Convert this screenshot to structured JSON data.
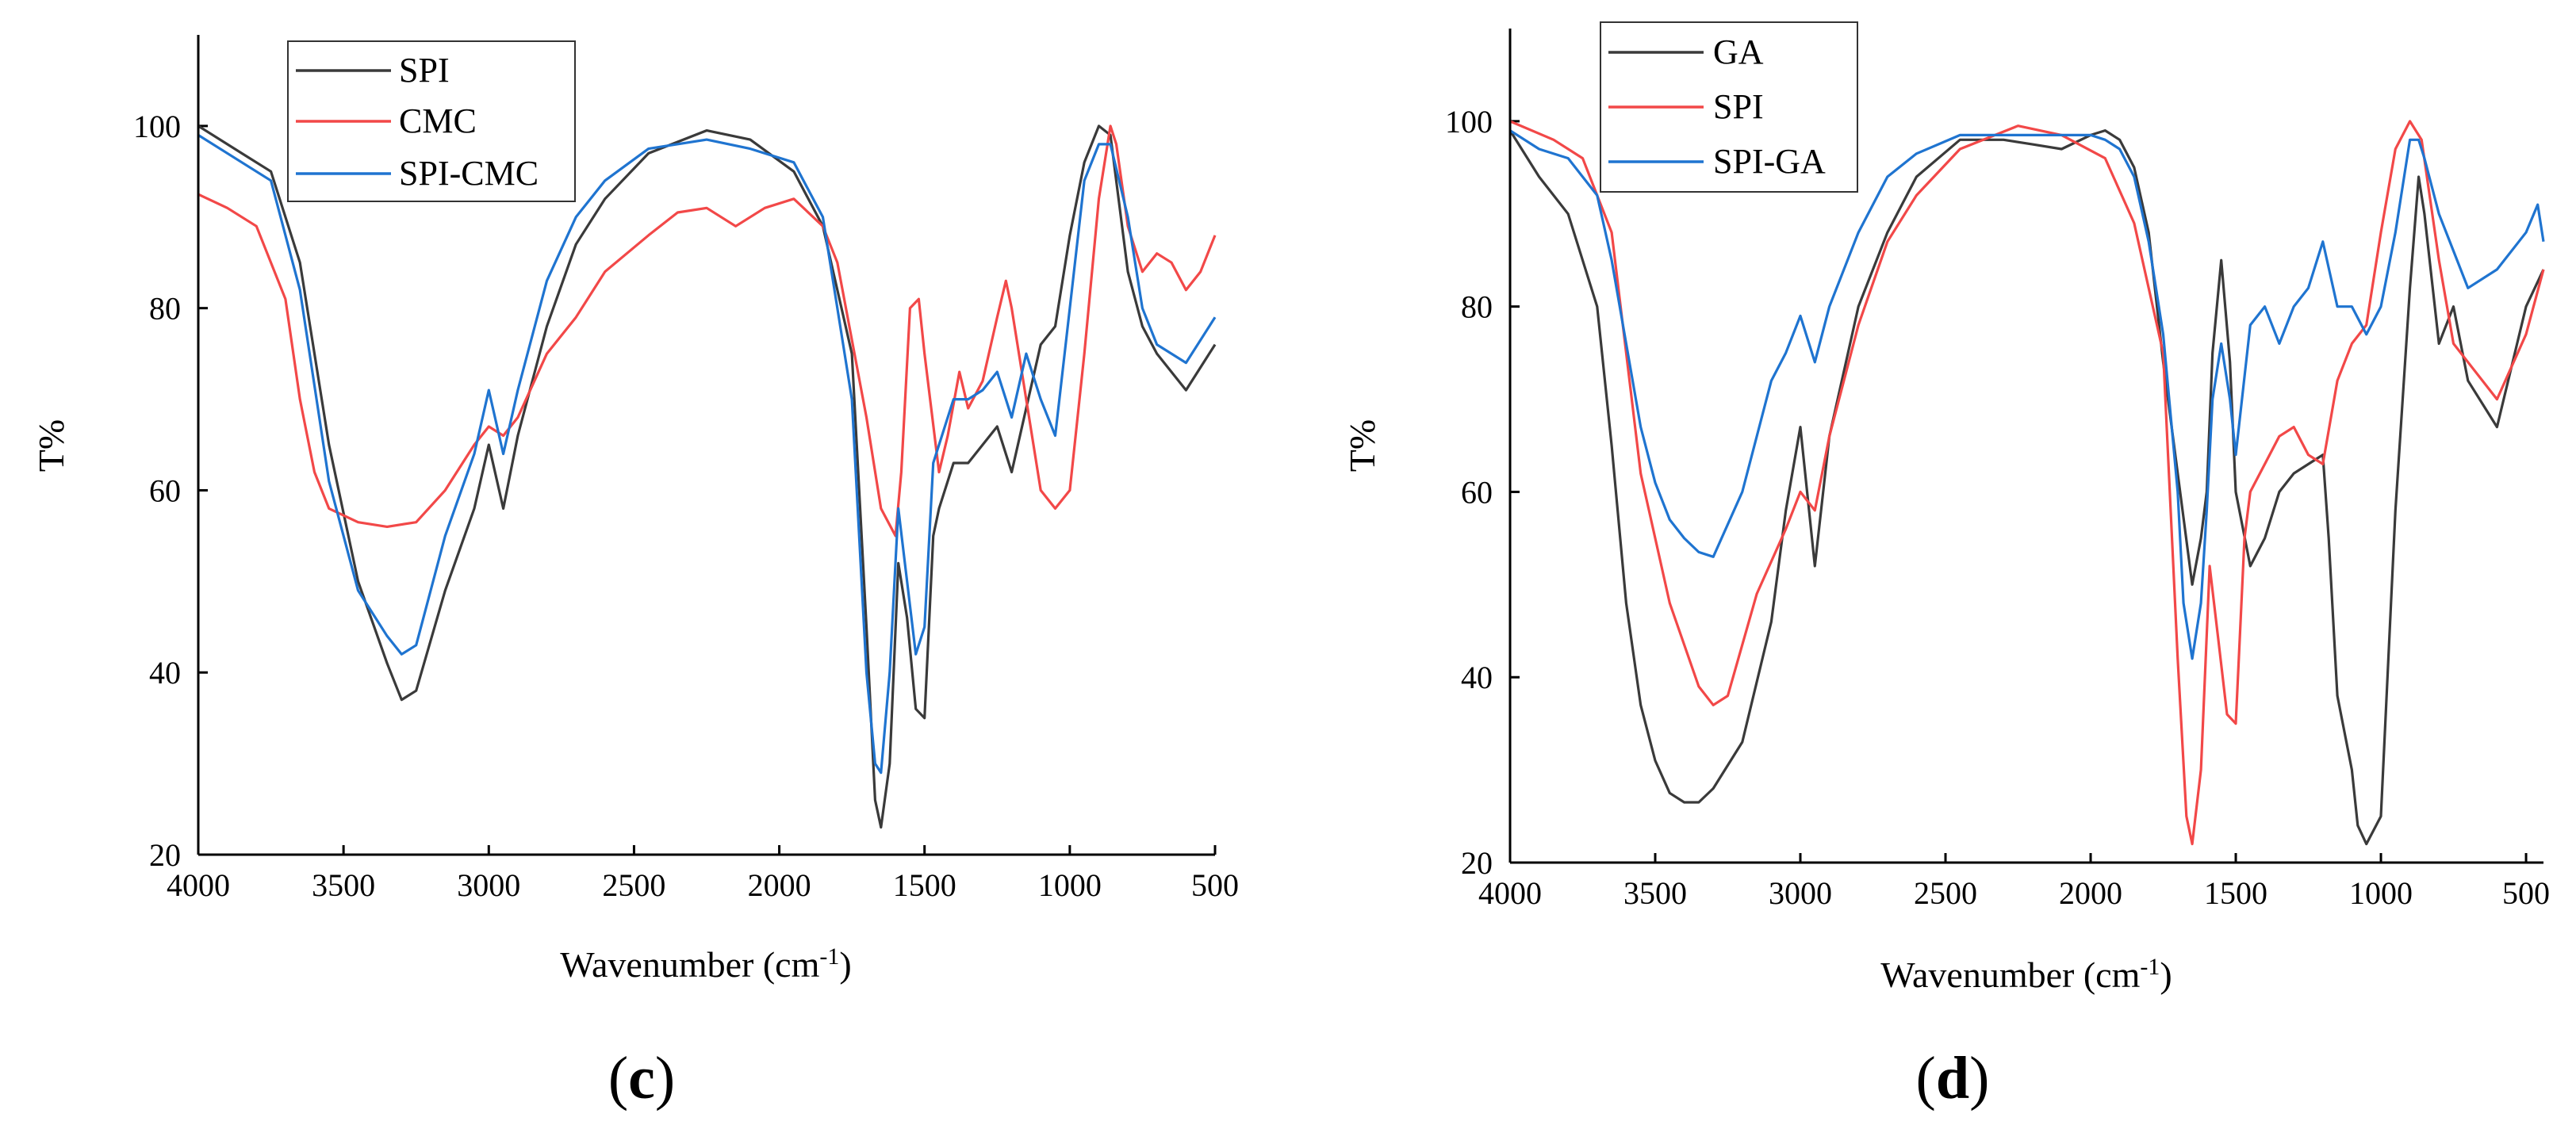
{
  "colors": {
    "dark": "#3a3a3a",
    "red": "#f24848",
    "blue": "#1f74d0",
    "axis": "#000000"
  },
  "chart_data": [
    {
      "panel_label": "c",
      "type": "line",
      "title": "",
      "xlabel": "Wavenumber (cm",
      "xlabel_sup": "-1",
      "xlabel_close": ")",
      "ylabel": "T%",
      "xlim": [
        4000,
        500
      ],
      "ylim": [
        20,
        110
      ],
      "xticks": [
        "4000",
        "3500",
        "3000",
        "2500",
        "2000",
        "1500",
        "1000",
        "500"
      ],
      "yticks": [
        "20",
        "40",
        "60",
        "80",
        "100"
      ],
      "legend": [
        "SPI",
        "CMC",
        "SPI-CMC"
      ],
      "legend_position": "top-left",
      "series": [
        {
          "name": "SPI",
          "color": "#3a3a3a",
          "x": [
            4000,
            3850,
            3750,
            3650,
            3550,
            3450,
            3350,
            3300,
            3250,
            3150,
            3050,
            3000,
            2950,
            2900,
            2800,
            2700,
            2600,
            2450,
            2250,
            2100,
            1950,
            1850,
            1750,
            1700,
            1670,
            1650,
            1620,
            1590,
            1560,
            1530,
            1500,
            1470,
            1450,
            1400,
            1350,
            1300,
            1250,
            1200,
            1150,
            1100,
            1050,
            1000,
            950,
            900,
            860,
            800,
            750,
            700,
            600,
            500
          ],
          "y": [
            100,
            97,
            95,
            85,
            65,
            50,
            41,
            37,
            38,
            49,
            58,
            65,
            58,
            66,
            78,
            87,
            92,
            97,
            99.5,
            98.5,
            95,
            89,
            75,
            45,
            26,
            23,
            30,
            52,
            46,
            36,
            35,
            55,
            58,
            63,
            63,
            65,
            67,
            62,
            69,
            76,
            78,
            88,
            96,
            100,
            99,
            84,
            78,
            75,
            71,
            76
          ]
        },
        {
          "name": "CMC",
          "color": "#f24848",
          "x": [
            4000,
            3900,
            3800,
            3700,
            3650,
            3600,
            3550,
            3450,
            3350,
            3250,
            3150,
            3050,
            3000,
            2950,
            2900,
            2800,
            2700,
            2600,
            2450,
            2350,
            2250,
            2150,
            2050,
            1950,
            1850,
            1800,
            1700,
            1650,
            1600,
            1580,
            1550,
            1520,
            1500,
            1450,
            1420,
            1380,
            1350,
            1300,
            1250,
            1220,
            1200,
            1150,
            1100,
            1050,
            1000,
            950,
            900,
            860,
            840,
            800,
            750,
            700,
            650,
            600,
            550,
            500
          ],
          "y": [
            92.5,
            91,
            89,
            81,
            70,
            62,
            58,
            56.5,
            56,
            56.5,
            60,
            65,
            67,
            66,
            68,
            75,
            79,
            84,
            88,
            90.5,
            91,
            89,
            91,
            92,
            89,
            85,
            68,
            58,
            55,
            62,
            80,
            81,
            75,
            62,
            66,
            73,
            69,
            72,
            79,
            83,
            80,
            70,
            60,
            58,
            60,
            75,
            92,
            100,
            98,
            89,
            84,
            86,
            85,
            82,
            84,
            88
          ]
        },
        {
          "name": "SPI-CMC",
          "color": "#1f74d0",
          "x": [
            4000,
            3850,
            3750,
            3650,
            3550,
            3450,
            3350,
            3300,
            3250,
            3150,
            3050,
            3000,
            2950,
            2900,
            2800,
            2700,
            2600,
            2450,
            2250,
            2100,
            1950,
            1850,
            1750,
            1700,
            1670,
            1650,
            1620,
            1590,
            1560,
            1530,
            1500,
            1470,
            1450,
            1400,
            1350,
            1300,
            1250,
            1200,
            1150,
            1100,
            1050,
            1000,
            950,
            900,
            860,
            800,
            750,
            700,
            600,
            500
          ],
          "y": [
            99,
            96,
            94,
            82,
            61,
            49,
            44,
            42,
            43,
            55,
            64,
            71,
            64,
            71,
            83,
            90,
            94,
            97.5,
            98.5,
            97.5,
            96,
            90,
            70,
            40,
            30,
            29,
            40,
            58,
            50,
            42,
            45,
            63,
            65,
            70,
            70,
            71,
            73,
            68,
            75,
            70,
            66,
            80,
            94,
            98,
            98,
            90,
            80,
            76,
            74,
            79
          ]
        }
      ]
    },
    {
      "panel_label": "d",
      "type": "line",
      "title": "",
      "xlabel": "Wavenumber (cm",
      "xlabel_sup": "-1",
      "xlabel_close": ")",
      "ylabel": "T%",
      "xlim": [
        4000,
        440
      ],
      "ylim": [
        20,
        110
      ],
      "xticks": [
        "4000",
        "3500",
        "3000",
        "2500",
        "2000",
        "1500",
        "1000",
        "500"
      ],
      "yticks": [
        "20",
        "40",
        "60",
        "80",
        "100"
      ],
      "legend": [
        "GA",
        "SPI",
        "SPI-GA"
      ],
      "legend_position": "top-left",
      "series": [
        {
          "name": "GA",
          "color": "#3a3a3a",
          "x": [
            4000,
            3900,
            3800,
            3700,
            3650,
            3600,
            3550,
            3500,
            3450,
            3400,
            3350,
            3300,
            3200,
            3100,
            3050,
            3000,
            2950,
            2900,
            2800,
            2700,
            2600,
            2450,
            2300,
            2200,
            2100,
            2000,
            1950,
            1900,
            1850,
            1800,
            1750,
            1700,
            1650,
            1620,
            1600,
            1580,
            1550,
            1520,
            1500,
            1450,
            1400,
            1350,
            1300,
            1250,
            1200,
            1180,
            1150,
            1100,
            1080,
            1050,
            1000,
            950,
            900,
            870,
            850,
            800,
            750,
            700,
            600,
            500,
            440
          ],
          "y": [
            99,
            94,
            90,
            80,
            65,
            48,
            37,
            31,
            27.5,
            26.5,
            26.5,
            28,
            33,
            46,
            58,
            67,
            52,
            66,
            80,
            88,
            94,
            98,
            98,
            97.5,
            97,
            98.5,
            99,
            98,
            95,
            88,
            74,
            62,
            50,
            55,
            60,
            75,
            85,
            74,
            60,
            52,
            55,
            60,
            62,
            63,
            64,
            55,
            38,
            30,
            24,
            22,
            25,
            58,
            82,
            94,
            90,
            76,
            80,
            72,
            67,
            80,
            84
          ]
        },
        {
          "name": "SPI",
          "color": "#f24848",
          "x": [
            4000,
            3850,
            3750,
            3650,
            3550,
            3450,
            3350,
            3300,
            3250,
            3150,
            3050,
            3000,
            2950,
            2900,
            2800,
            2700,
            2600,
            2450,
            2250,
            2100,
            1950,
            1850,
            1750,
            1700,
            1670,
            1650,
            1620,
            1590,
            1560,
            1530,
            1500,
            1470,
            1450,
            1400,
            1350,
            1300,
            1250,
            1200,
            1150,
            1100,
            1050,
            1000,
            950,
            900,
            860,
            800,
            750,
            700,
            600,
            500,
            440
          ],
          "y": [
            100,
            98,
            96,
            88,
            62,
            48,
            39,
            37,
            38,
            49,
            56,
            60,
            58,
            66,
            78,
            87,
            92,
            97,
            99.5,
            98.5,
            96,
            89,
            75,
            42,
            25,
            22,
            30,
            52,
            44,
            36,
            35,
            55,
            60,
            63,
            66,
            67,
            64,
            63,
            72,
            76,
            78,
            88,
            97,
            100,
            98,
            85,
            76,
            74,
            70,
            77,
            84
          ]
        },
        {
          "name": "SPI-GA",
          "color": "#1f74d0",
          "x": [
            4000,
            3900,
            3800,
            3700,
            3650,
            3600,
            3550,
            3500,
            3450,
            3400,
            3350,
            3300,
            3200,
            3100,
            3050,
            3000,
            2950,
            2900,
            2800,
            2700,
            2600,
            2450,
            2300,
            2200,
            2100,
            2000,
            1950,
            1900,
            1850,
            1800,
            1750,
            1700,
            1680,
            1650,
            1620,
            1600,
            1580,
            1550,
            1520,
            1500,
            1450,
            1400,
            1350,
            1300,
            1250,
            1200,
            1150,
            1100,
            1050,
            1000,
            950,
            900,
            870,
            850,
            800,
            750,
            700,
            600,
            500,
            460,
            440
          ],
          "y": [
            99,
            97,
            96,
            92,
            85,
            76,
            67,
            61,
            57,
            55,
            53.5,
            53,
            60,
            72,
            75,
            79,
            74,
            80,
            88,
            94,
            96.5,
            98.5,
            98.5,
            98.5,
            98.5,
            98.5,
            98,
            97,
            94,
            87,
            77,
            60,
            48,
            42,
            48,
            58,
            70,
            76,
            70,
            64,
            78,
            80,
            76,
            80,
            82,
            87,
            80,
            80,
            77,
            80,
            88,
            98,
            98,
            96,
            90,
            86,
            82,
            84,
            88,
            91,
            87
          ]
        }
      ]
    }
  ]
}
